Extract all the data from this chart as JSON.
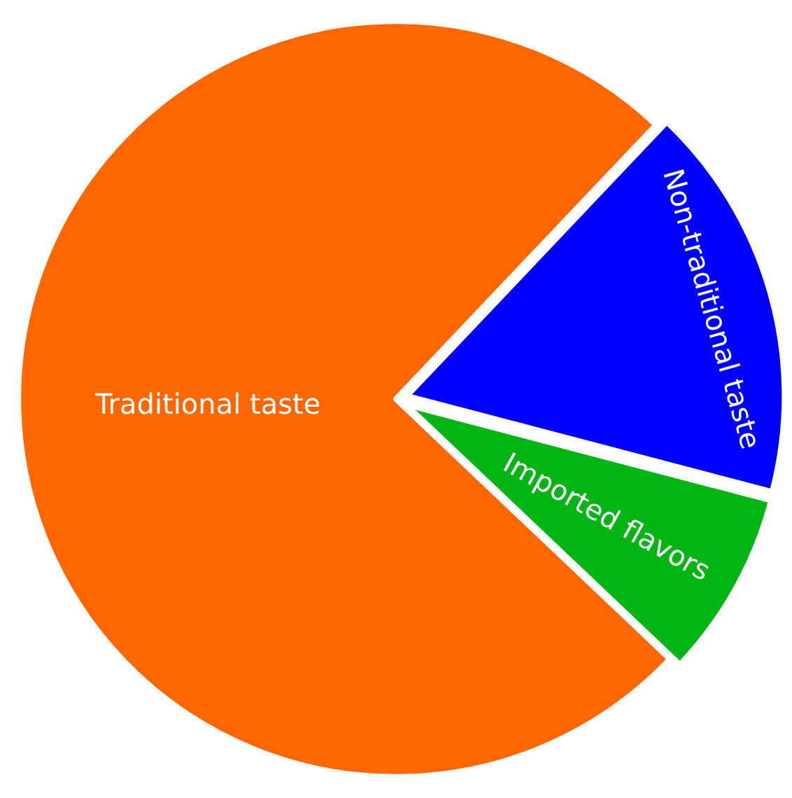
{
  "chart_data": {
    "type": "pie",
    "categories": [
      "Non-traditional taste",
      "Imported flavors",
      "Traditional taste"
    ],
    "values": [
      17,
      8,
      75
    ],
    "colors": [
      "#0000ff",
      "#00b414",
      "#ff6600"
    ]
  }
}
